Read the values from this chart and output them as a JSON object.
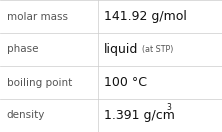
{
  "rows": [
    {
      "label": "molar mass",
      "value": "141.92 g/mol",
      "superscript": null,
      "small_suffix": null
    },
    {
      "label": "phase",
      "value": "liquid",
      "superscript": null,
      "small_suffix": "(at STP)"
    },
    {
      "label": "boiling point",
      "value": "100 °C",
      "superscript": null,
      "small_suffix": null
    },
    {
      "label": "density",
      "value": "1.391 g/cm",
      "superscript": "3",
      "small_suffix": null
    }
  ],
  "col_split": 0.44,
  "background_color": "#ffffff",
  "border_color": "#cccccc",
  "label_fontsize": 7.5,
  "value_fontsize": 9.0,
  "small_fontsize": 5.8,
  "super_fontsize": 5.5,
  "label_color": "#555555",
  "value_color": "#111111"
}
